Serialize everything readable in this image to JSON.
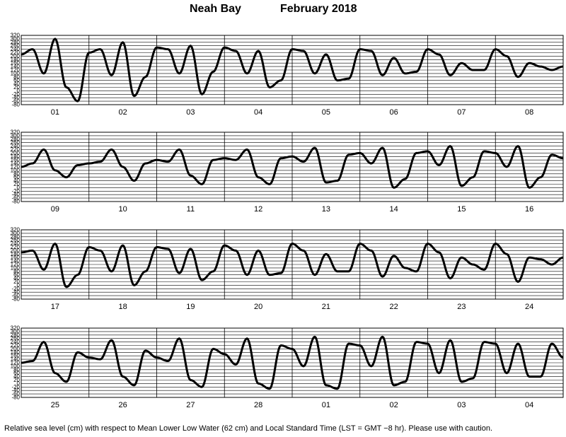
{
  "header": {
    "station": "Neah Bay",
    "period": "February   2018"
  },
  "footer": {
    "note": "Relative sea level (cm) with respect to Mean Lower Low Water (62 cm) and Local Standard Time (LST = GMT −8 hr). Please use with caution."
  },
  "chart_data": {
    "type": "line",
    "ylim": [
      -80,
      320
    ],
    "yticks": [
      320,
      300,
      280,
      260,
      240,
      220,
      200,
      180,
      160,
      140,
      120,
      100,
      80,
      60,
      40,
      20,
      0,
      -20,
      -40,
      -60,
      -80
    ],
    "grid": true,
    "line_color": "#000000",
    "panels": [
      {
        "days": [
          "01",
          "02",
          "03",
          "04",
          "05",
          "06",
          "07",
          "08"
        ],
        "x": [
          0,
          4,
          8,
          12,
          16,
          20,
          24,
          28,
          32,
          36,
          40,
          44,
          48,
          52,
          56,
          60,
          64,
          68,
          72,
          76,
          80,
          84,
          88,
          92,
          96,
          100,
          104,
          108,
          112,
          116,
          120,
          124,
          128,
          132,
          136,
          140,
          144,
          148,
          152,
          156,
          160,
          164,
          168,
          172,
          176,
          180,
          184,
          188,
          192
        ],
        "y": [
          210,
          240,
          100,
          300,
          20,
          -60,
          220,
          240,
          90,
          280,
          -30,
          80,
          250,
          240,
          100,
          260,
          -20,
          110,
          250,
          230,
          100,
          230,
          20,
          60,
          240,
          230,
          100,
          210,
          60,
          70,
          240,
          230,
          90,
          190,
          100,
          110,
          240,
          210,
          90,
          160,
          120,
          120,
          240,
          200,
          80,
          160,
          140,
          120,
          140
        ]
      },
      {
        "days": [
          "09",
          "10",
          "11",
          "12",
          "13",
          "14",
          "15",
          "16"
        ],
        "x": [
          0,
          4,
          8,
          12,
          16,
          20,
          24,
          28,
          32,
          36,
          40,
          44,
          48,
          52,
          56,
          60,
          64,
          68,
          72,
          76,
          80,
          84,
          88,
          92,
          96,
          100,
          104,
          108,
          112,
          116,
          120,
          124,
          128,
          132,
          136,
          140,
          144,
          148,
          152,
          156,
          160,
          164,
          168,
          172,
          176,
          180,
          184,
          188,
          192
        ],
        "y": [
          120,
          140,
          220,
          100,
          60,
          130,
          140,
          150,
          220,
          120,
          40,
          140,
          160,
          150,
          220,
          70,
          20,
          160,
          170,
          160,
          220,
          60,
          20,
          170,
          180,
          150,
          230,
          30,
          40,
          190,
          200,
          140,
          230,
          0,
          50,
          200,
          210,
          130,
          240,
          10,
          60,
          210,
          200,
          120,
          240,
          0,
          60,
          190,
          170
        ]
      },
      {
        "days": [
          "17",
          "18",
          "19",
          "20",
          "21",
          "22",
          "23",
          "24"
        ],
        "x": [
          0,
          4,
          8,
          12,
          16,
          20,
          24,
          28,
          32,
          36,
          40,
          44,
          48,
          52,
          56,
          60,
          64,
          68,
          72,
          76,
          80,
          84,
          88,
          92,
          96,
          100,
          104,
          108,
          112,
          116,
          120,
          124,
          128,
          132,
          136,
          140,
          144,
          148,
          152,
          156,
          160,
          164,
          168,
          172,
          176,
          180,
          184,
          188,
          192
        ],
        "y": [
          190,
          200,
          90,
          240,
          -10,
          60,
          220,
          200,
          80,
          230,
          0,
          80,
          220,
          210,
          70,
          210,
          30,
          80,
          230,
          200,
          60,
          200,
          60,
          70,
          240,
          200,
          60,
          180,
          80,
          80,
          240,
          200,
          50,
          170,
          100,
          80,
          240,
          190,
          40,
          160,
          120,
          90,
          240,
          180,
          20,
          160,
          150,
          120,
          160
        ]
      },
      {
        "days": [
          "25",
          "26",
          "27",
          "28",
          "01",
          "02",
          "03",
          "04"
        ],
        "x": [
          0,
          4,
          8,
          12,
          16,
          20,
          24,
          28,
          32,
          36,
          40,
          44,
          48,
          52,
          56,
          60,
          64,
          68,
          72,
          76,
          80,
          84,
          88,
          92,
          96,
          100,
          104,
          108,
          112,
          116,
          120,
          124,
          128,
          132,
          136,
          140,
          144,
          148,
          152,
          156,
          160,
          164,
          168,
          172,
          176,
          180,
          184,
          188,
          192
        ],
        "y": [
          120,
          130,
          240,
          60,
          10,
          180,
          150,
          140,
          250,
          40,
          -10,
          190,
          150,
          130,
          260,
          20,
          -20,
          200,
          170,
          110,
          260,
          0,
          -30,
          220,
          200,
          100,
          270,
          -10,
          -30,
          230,
          220,
          100,
          270,
          -10,
          10,
          240,
          230,
          60,
          250,
          10,
          30,
          240,
          230,
          60,
          230,
          40,
          40,
          230,
          150
        ]
      }
    ]
  }
}
